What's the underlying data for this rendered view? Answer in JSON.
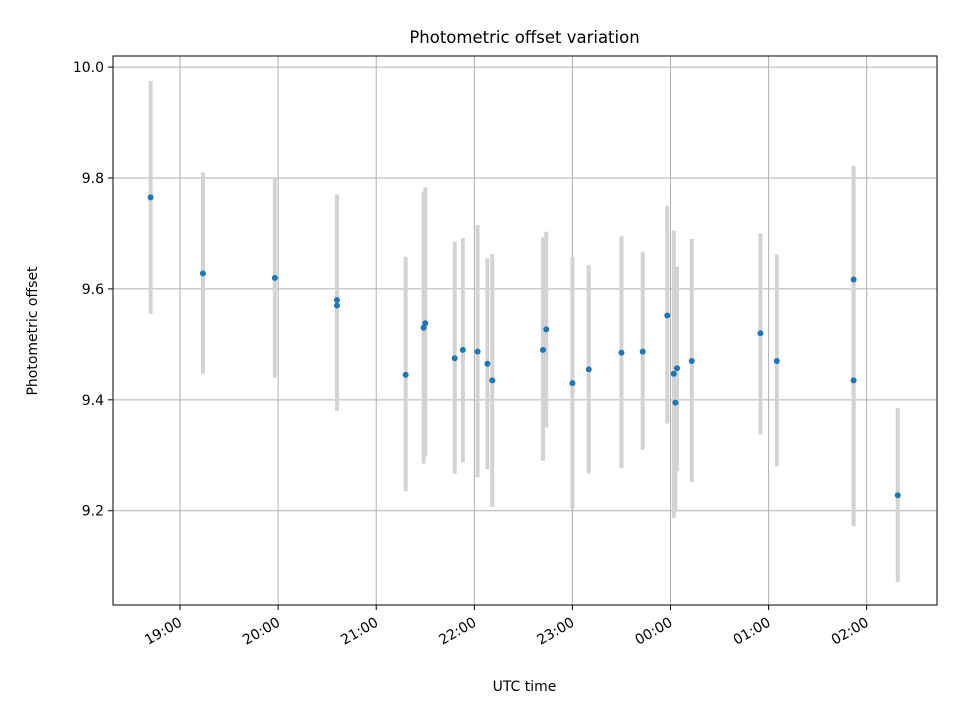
{
  "chart_data": {
    "type": "scatter",
    "title": "Photometric offset variation",
    "xlabel": "UTC time",
    "ylabel": "Photometric offset",
    "grid": true,
    "xlim": [
      "18:19",
      "02:43"
    ],
    "ylim": [
      9.03,
      10.02
    ],
    "xticks": [
      "19:00",
      "20:00",
      "21:00",
      "22:00",
      "23:00",
      "00:00",
      "01:00",
      "02:00"
    ],
    "yticks": [
      "9.2",
      "9.4",
      "9.6",
      "9.8",
      "10.0"
    ],
    "colors": {
      "point": "#1f77b4",
      "errorbar": "#d3d3d3",
      "grid": "#b0b0b0"
    },
    "series": [
      {
        "x": [
          "18:42",
          "19:14",
          "19:58",
          "20:36",
          "20:36",
          "21:18",
          "21:29",
          "21:30",
          "21:48",
          "21:53",
          "22:02",
          "22:08",
          "22:11",
          "22:42",
          "22:44",
          "23:00",
          "23:10",
          "23:30",
          "23:43",
          "23:58",
          "00:02",
          "00:03",
          "00:04",
          "00:13",
          "00:55",
          "01:05",
          "01:52",
          "01:52",
          "02:19"
        ],
        "y": [
          9.765,
          9.628,
          9.62,
          9.58,
          9.57,
          9.445,
          9.53,
          9.538,
          9.475,
          9.49,
          9.487,
          9.465,
          9.435,
          9.49,
          9.527,
          9.43,
          9.455,
          9.485,
          9.487,
          9.552,
          9.447,
          9.395,
          9.457,
          9.47,
          9.52,
          9.47,
          9.617,
          9.435,
          9.228
        ],
        "err_low": [
          9.555,
          9.447,
          9.44,
          9.38,
          9.38,
          9.235,
          9.285,
          9.298,
          9.267,
          9.287,
          9.26,
          9.275,
          9.207,
          9.29,
          9.35,
          9.203,
          9.267,
          9.277,
          9.31,
          9.357,
          9.187,
          9.2,
          9.272,
          9.252,
          9.338,
          9.28,
          9.232,
          9.172,
          9.072
        ],
        "err_high": [
          9.975,
          9.81,
          9.8,
          9.77,
          9.77,
          9.658,
          9.775,
          9.783,
          9.685,
          9.692,
          9.715,
          9.655,
          9.663,
          9.693,
          9.703,
          9.657,
          9.643,
          9.695,
          9.667,
          9.75,
          9.705,
          9.64,
          9.64,
          9.69,
          9.7,
          9.662,
          9.822,
          9.698,
          9.385
        ]
      }
    ]
  }
}
